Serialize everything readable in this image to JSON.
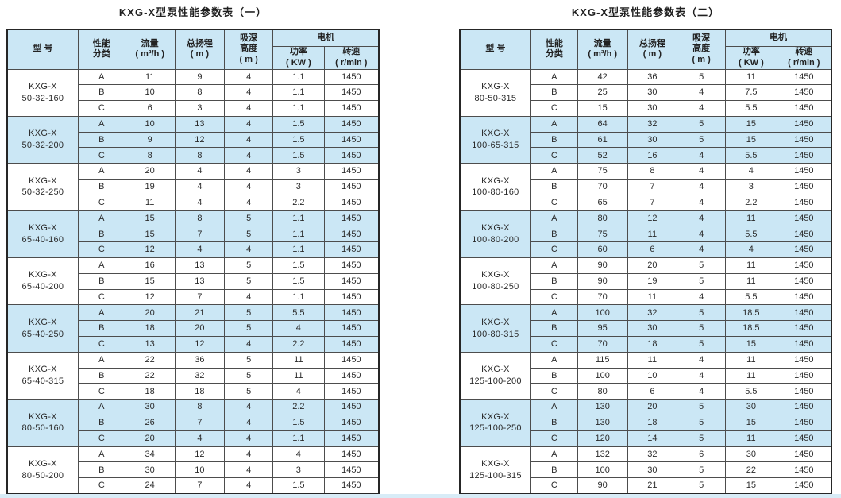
{
  "page": {
    "background": "#ffffff",
    "bottom_strip_color": "#d8ecf7"
  },
  "colors": {
    "band_blue": "#cbe7f5",
    "header_bg": "#cbe7f5",
    "border": "#4d4d4d",
    "outer_border": "#262626",
    "text": "#2b2b2b"
  },
  "tables": [
    {
      "title": "KXG-X型泵性能参数表（一）",
      "headers": {
        "model": "型 号",
        "class": "性能\n分类",
        "flow": "流量\n( m³/h )",
        "head": "总扬程\n( m )",
        "suction": "吸深\n高度\n( m )",
        "motor": "电机",
        "power": "功率\n( KW )",
        "speed": "转速\n( r/min )"
      },
      "groups": [
        {
          "model": "KXG-X\n50-32-160",
          "highlighted": false,
          "rows": [
            {
              "class": "A",
              "values": [
                "11",
                "9",
                "4",
                "1.1",
                "1450"
              ]
            },
            {
              "class": "B",
              "values": [
                "10",
                "8",
                "4",
                "1.1",
                "1450"
              ]
            },
            {
              "class": "C",
              "values": [
                "6",
                "3",
                "4",
                "1.1",
                "1450"
              ]
            }
          ]
        },
        {
          "model": "KXG-X\n50-32-200",
          "highlighted": true,
          "rows": [
            {
              "class": "A",
              "values": [
                "10",
                "13",
                "4",
                "1.5",
                "1450"
              ]
            },
            {
              "class": "B",
              "values": [
                "9",
                "12",
                "4",
                "1.5",
                "1450"
              ]
            },
            {
              "class": "C",
              "values": [
                "8",
                "8",
                "4",
                "1.5",
                "1450"
              ]
            }
          ]
        },
        {
          "model": "KXG-X\n50-32-250",
          "highlighted": false,
          "rows": [
            {
              "class": "A",
              "values": [
                "20",
                "4",
                "4",
                "3",
                "1450"
              ]
            },
            {
              "class": "B",
              "values": [
                "19",
                "4",
                "4",
                "3",
                "1450"
              ]
            },
            {
              "class": "C",
              "values": [
                "11",
                "4",
                "4",
                "2.2",
                "1450"
              ]
            }
          ]
        },
        {
          "model": "KXG-X\n65-40-160",
          "highlighted": true,
          "rows": [
            {
              "class": "A",
              "values": [
                "15",
                "8",
                "5",
                "1.1",
                "1450"
              ]
            },
            {
              "class": "B",
              "values": [
                "15",
                "7",
                "5",
                "1.1",
                "1450"
              ]
            },
            {
              "class": "C",
              "values": [
                "12",
                "4",
                "4",
                "1.1",
                "1450"
              ]
            }
          ]
        },
        {
          "model": "KXG-X\n65-40-200",
          "highlighted": false,
          "rows": [
            {
              "class": "A",
              "values": [
                "16",
                "13",
                "5",
                "1.5",
                "1450"
              ]
            },
            {
              "class": "B",
              "values": [
                "15",
                "13",
                "5",
                "1.5",
                "1450"
              ]
            },
            {
              "class": "C",
              "values": [
                "12",
                "7",
                "4",
                "1.1",
                "1450"
              ]
            }
          ]
        },
        {
          "model": "KXG-X\n65-40-250",
          "highlighted": true,
          "rows": [
            {
              "class": "A",
              "values": [
                "20",
                "21",
                "5",
                "5.5",
                "1450"
              ]
            },
            {
              "class": "B",
              "values": [
                "18",
                "20",
                "5",
                "4",
                "1450"
              ]
            },
            {
              "class": "C",
              "values": [
                "13",
                "12",
                "4",
                "2.2",
                "1450"
              ]
            }
          ]
        },
        {
          "model": "KXG-X\n65-40-315",
          "highlighted": false,
          "rows": [
            {
              "class": "A",
              "values": [
                "22",
                "36",
                "5",
                "11",
                "1450"
              ]
            },
            {
              "class": "B",
              "values": [
                "22",
                "32",
                "5",
                "11",
                "1450"
              ]
            },
            {
              "class": "C",
              "values": [
                "18",
                "18",
                "5",
                "4",
                "1450"
              ]
            }
          ]
        },
        {
          "model": "KXG-X\n80-50-160",
          "highlighted": true,
          "rows": [
            {
              "class": "A",
              "values": [
                "30",
                "8",
                "4",
                "2.2",
                "1450"
              ]
            },
            {
              "class": "B",
              "values": [
                "26",
                "7",
                "4",
                "1.5",
                "1450"
              ]
            },
            {
              "class": "C",
              "values": [
                "20",
                "4",
                "4",
                "1.1",
                "1450"
              ]
            }
          ]
        },
        {
          "model": "KXG-X\n80-50-200",
          "highlighted": false,
          "rows": [
            {
              "class": "A",
              "values": [
                "34",
                "12",
                "4",
                "4",
                "1450"
              ]
            },
            {
              "class": "B",
              "values": [
                "30",
                "10",
                "4",
                "3",
                "1450"
              ]
            },
            {
              "class": "C",
              "values": [
                "24",
                "7",
                "4",
                "1.5",
                "1450"
              ]
            }
          ]
        }
      ]
    },
    {
      "title": "KXG-X型泵性能参数表（二）",
      "headers": {
        "model": "型 号",
        "class": "性能\n分类",
        "flow": "流量\n( m³/h )",
        "head": "总扬程\n( m )",
        "suction": "吸深\n高度\n( m )",
        "motor": "电机",
        "power": "功率\n( KW )",
        "speed": "转速\n( r/min )"
      },
      "groups": [
        {
          "model": "KXG-X\n80-50-315",
          "highlighted": false,
          "rows": [
            {
              "class": "A",
              "values": [
                "42",
                "36",
                "5",
                "11",
                "1450"
              ]
            },
            {
              "class": "B",
              "values": [
                "25",
                "30",
                "4",
                "7.5",
                "1450"
              ]
            },
            {
              "class": "C",
              "values": [
                "15",
                "30",
                "4",
                "5.5",
                "1450"
              ]
            }
          ]
        },
        {
          "model": "KXG-X\n100-65-315",
          "highlighted": true,
          "rows": [
            {
              "class": "A",
              "values": [
                "64",
                "32",
                "5",
                "15",
                "1450"
              ]
            },
            {
              "class": "B",
              "values": [
                "61",
                "30",
                "5",
                "15",
                "1450"
              ]
            },
            {
              "class": "C",
              "values": [
                "52",
                "16",
                "4",
                "5.5",
                "1450"
              ]
            }
          ]
        },
        {
          "model": "KXG-X\n100-80-160",
          "highlighted": false,
          "rows": [
            {
              "class": "A",
              "values": [
                "75",
                "8",
                "4",
                "4",
                "1450"
              ]
            },
            {
              "class": "B",
              "values": [
                "70",
                "7",
                "4",
                "3",
                "1450"
              ]
            },
            {
              "class": "C",
              "values": [
                "65",
                "7",
                "4",
                "2.2",
                "1450"
              ]
            }
          ]
        },
        {
          "model": "KXG-X\n100-80-200",
          "highlighted": true,
          "rows": [
            {
              "class": "A",
              "values": [
                "80",
                "12",
                "4",
                "11",
                "1450"
              ]
            },
            {
              "class": "B",
              "values": [
                "75",
                "11",
                "4",
                "5.5",
                "1450"
              ]
            },
            {
              "class": "C",
              "values": [
                "60",
                "6",
                "4",
                "4",
                "1450"
              ]
            }
          ]
        },
        {
          "model": "KXG-X\n100-80-250",
          "highlighted": false,
          "rows": [
            {
              "class": "A",
              "values": [
                "90",
                "20",
                "5",
                "11",
                "1450"
              ]
            },
            {
              "class": "B",
              "values": [
                "90",
                "19",
                "5",
                "11",
                "1450"
              ]
            },
            {
              "class": "C",
              "values": [
                "70",
                "11",
                "4",
                "5.5",
                "1450"
              ]
            }
          ]
        },
        {
          "model": "KXG-X\n100-80-315",
          "highlighted": true,
          "rows": [
            {
              "class": "A",
              "values": [
                "100",
                "32",
                "5",
                "18.5",
                "1450"
              ]
            },
            {
              "class": "B",
              "values": [
                "95",
                "30",
                "5",
                "18.5",
                "1450"
              ]
            },
            {
              "class": "C",
              "values": [
                "70",
                "18",
                "5",
                "15",
                "1450"
              ]
            }
          ]
        },
        {
          "model": "KXG-X\n125-100-200",
          "highlighted": false,
          "rows": [
            {
              "class": "A",
              "values": [
                "115",
                "11",
                "4",
                "11",
                "1450"
              ]
            },
            {
              "class": "B",
              "values": [
                "100",
                "10",
                "4",
                "11",
                "1450"
              ]
            },
            {
              "class": "C",
              "values": [
                "80",
                "6",
                "4",
                "5.5",
                "1450"
              ]
            }
          ]
        },
        {
          "model": "KXG-X\n125-100-250",
          "highlighted": true,
          "rows": [
            {
              "class": "A",
              "values": [
                "130",
                "20",
                "5",
                "30",
                "1450"
              ]
            },
            {
              "class": "B",
              "values": [
                "130",
                "18",
                "5",
                "15",
                "1450"
              ]
            },
            {
              "class": "C",
              "values": [
                "120",
                "14",
                "5",
                "11",
                "1450"
              ]
            }
          ]
        },
        {
          "model": "KXG-X\n125-100-315",
          "highlighted": false,
          "rows": [
            {
              "class": "A",
              "values": [
                "132",
                "32",
                "6",
                "30",
                "1450"
              ]
            },
            {
              "class": "B",
              "values": [
                "100",
                "30",
                "5",
                "22",
                "1450"
              ]
            },
            {
              "class": "C",
              "values": [
                "90",
                "21",
                "5",
                "15",
                "1450"
              ]
            }
          ]
        }
      ]
    }
  ]
}
